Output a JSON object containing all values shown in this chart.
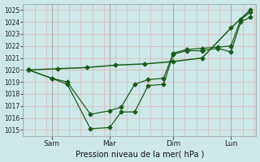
{
  "title": "",
  "xlabel": "Pression niveau de la mer( hPa )",
  "ylabel": "",
  "bg_color": "#cce8e8",
  "grid_color": "#ddbbbb",
  "line_color": "#1a5c1a",
  "ylim": [
    1014.5,
    1025.5
  ],
  "yticks": [
    1015,
    1016,
    1017,
    1018,
    1019,
    1020,
    1021,
    1022,
    1023,
    1024,
    1025
  ],
  "xlim": [
    -0.3,
    11.8
  ],
  "xtick_positions": [
    1.2,
    4.2,
    7.5,
    10.5
  ],
  "xtick_labels": [
    "Sam",
    "Mar",
    "Dim",
    "Lun"
  ],
  "vlines": [
    1.2,
    4.2,
    7.5,
    10.5
  ],
  "series1_x": [
    0.0,
    1.2,
    2.0,
    3.2,
    4.2,
    4.8,
    5.5,
    6.2,
    7.0,
    7.5,
    8.2,
    9.0,
    9.8,
    10.5,
    11.0,
    11.5
  ],
  "series1_y": [
    1020.0,
    1019.3,
    1018.8,
    1015.1,
    1015.2,
    1016.5,
    1016.5,
    1018.7,
    1018.8,
    1021.3,
    1021.6,
    1021.6,
    1021.8,
    1021.5,
    1024.0,
    1024.4
  ],
  "series2_x": [
    0.0,
    1.2,
    2.0,
    3.2,
    4.2,
    4.8,
    5.5,
    6.2,
    7.0,
    7.5,
    8.2,
    9.0,
    9.8,
    10.5,
    11.0,
    11.5
  ],
  "series2_y": [
    1020.0,
    1019.3,
    1019.0,
    1016.3,
    1016.6,
    1016.9,
    1018.8,
    1019.2,
    1019.3,
    1021.4,
    1021.7,
    1021.8,
    1021.9,
    1022.0,
    1024.2,
    1024.8
  ],
  "series3_x": [
    0.0,
    1.5,
    3.0,
    4.5,
    6.0,
    7.5,
    9.0,
    10.5,
    11.5
  ],
  "series3_y": [
    1020.0,
    1020.1,
    1020.2,
    1020.4,
    1020.5,
    1020.7,
    1021.0,
    1023.5,
    1025.0
  ]
}
